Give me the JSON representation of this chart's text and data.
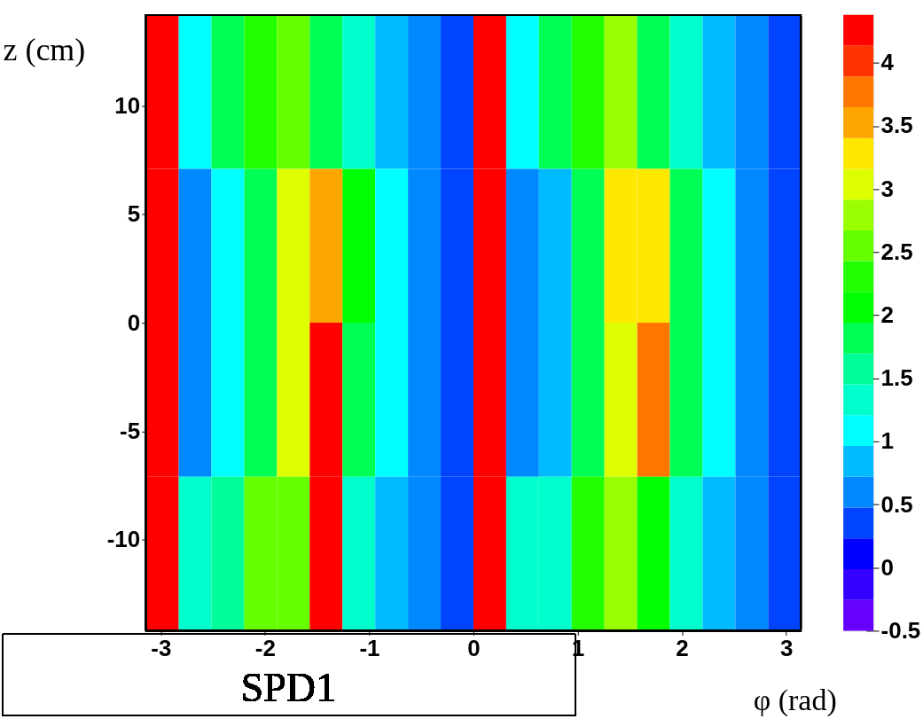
{
  "chart_data": {
    "type": "heatmap",
    "title": "SPD1",
    "xlabel": "φ (rad)",
    "ylabel": "z (cm)",
    "x": [
      -2.9845,
      -2.6704,
      -2.3562,
      -2.042,
      -1.7279,
      -1.4137,
      -1.0996,
      -0.7854,
      -0.4712,
      -0.1571,
      0.1571,
      0.4712,
      0.7854,
      1.0996,
      1.4137,
      1.7279,
      2.042,
      2.3562,
      2.6704,
      2.9845
    ],
    "y": [
      10.65,
      3.55,
      -3.55,
      -10.65
    ],
    "xlim": [
      -3.1416,
      3.1416
    ],
    "xticks": [
      -3,
      -2,
      -1,
      0,
      1,
      2,
      3
    ],
    "ylim": [
      -14.2,
      14.2
    ],
    "yticks": [
      -10,
      -5,
      0,
      5,
      10
    ],
    "clim": [
      -0.5,
      4.38
    ],
    "cticks": [
      -0.5,
      0,
      0.5,
      1,
      1.5,
      2,
      2.5,
      3,
      3.5,
      4
    ],
    "colors": [
      "#6600ff",
      "#3300ff",
      "#0000ff",
      "#0044ff",
      "#0088ff",
      "#00bbff",
      "#00ffff",
      "#00ffcc",
      "#00ff99",
      "#00ff55",
      "#00ff00",
      "#22ff00",
      "#66ff00",
      "#99ff00",
      "#ddff00",
      "#ffe800",
      "#ffa500",
      "#ff7700",
      "#ff3300",
      "#ff0000"
    ],
    "grid": false,
    "cells": [
      [
        4.3,
        1.1,
        1.8,
        2.3,
        2.6,
        1.8,
        1.3,
        0.8,
        0.6,
        0.4,
        4.3,
        1.1,
        1.8,
        2.3,
        2.8,
        1.8,
        1.3,
        0.8,
        0.6,
        0.4
      ],
      [
        4.3,
        0.6,
        1.1,
        1.8,
        3.0,
        3.5,
        2.1,
        1.1,
        0.6,
        0.4,
        4.3,
        0.6,
        0.8,
        1.8,
        3.3,
        3.3,
        1.8,
        1.1,
        0.6,
        0.4
      ],
      [
        4.3,
        0.6,
        1.1,
        1.8,
        3.0,
        4.3,
        1.8,
        1.1,
        0.6,
        0.4,
        4.3,
        0.6,
        0.8,
        1.8,
        3.0,
        3.8,
        1.8,
        1.1,
        0.6,
        0.4
      ],
      [
        4.3,
        1.3,
        1.6,
        2.6,
        2.6,
        4.3,
        1.3,
        0.8,
        0.6,
        0.4,
        4.3,
        1.3,
        1.3,
        2.3,
        2.8,
        2.1,
        1.3,
        0.8,
        0.6,
        0.4
      ]
    ]
  }
}
